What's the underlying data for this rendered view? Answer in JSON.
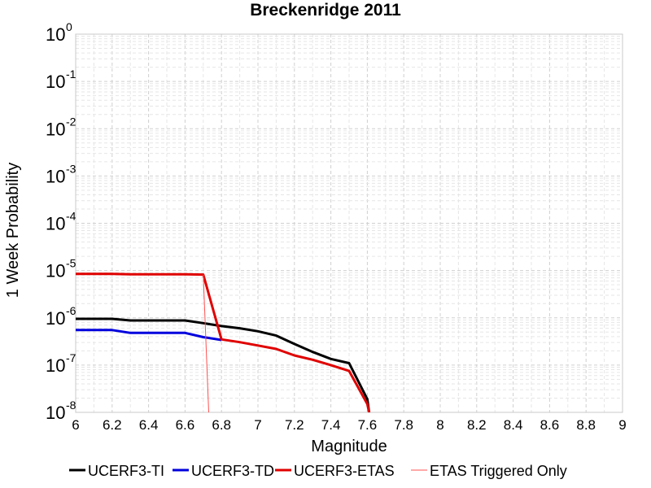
{
  "chart_data": {
    "type": "line",
    "title": "Breckenridge 2011",
    "xlabel": "Magnitude",
    "ylabel": "1 Week Probability",
    "xlim": [
      6,
      9
    ],
    "ylim": [
      1e-08,
      1
    ],
    "yscale": "log",
    "grid": true,
    "legend_position": "bottom",
    "x_ticks": [
      "6",
      "6.2",
      "6.4",
      "6.6",
      "6.8",
      "7",
      "7.2",
      "7.4",
      "7.6",
      "7.8",
      "8",
      "8.2",
      "8.4",
      "8.6",
      "8.8",
      "9"
    ],
    "y_ticks": [
      {
        "base": "10",
        "exp": "0",
        "value": 1
      },
      {
        "base": "10",
        "exp": "-1",
        "value": 0.1
      },
      {
        "base": "10",
        "exp": "-2",
        "value": 0.01
      },
      {
        "base": "10",
        "exp": "-3",
        "value": 0.001
      },
      {
        "base": "10",
        "exp": "-4",
        "value": 0.0001
      },
      {
        "base": "10",
        "exp": "-5",
        "value": 1e-05
      },
      {
        "base": "10",
        "exp": "-6",
        "value": 1e-06
      },
      {
        "base": "10",
        "exp": "-7",
        "value": 1e-07
      },
      {
        "base": "10",
        "exp": "-8",
        "value": 1e-08
      }
    ],
    "series": [
      {
        "name": "UCERF3-TI",
        "color": "#000000",
        "width": 3,
        "x": [
          6.0,
          6.2,
          6.3,
          6.5,
          6.6,
          6.7,
          6.8,
          6.9,
          7.0,
          7.1,
          7.2,
          7.3,
          7.4,
          7.5,
          7.6,
          7.61
        ],
        "y": [
          9.5e-07,
          9.5e-07,
          8.8e-07,
          8.8e-07,
          8.8e-07,
          7.7e-07,
          6.7e-07,
          6e-07,
          5.2e-07,
          4.2e-07,
          2.8e-07,
          1.9e-07,
          1.35e-07,
          1.1e-07,
          1.9e-08,
          1e-08
        ]
      },
      {
        "name": "UCERF3-TD",
        "color": "#0000dd",
        "width": 3,
        "x": [
          6.0,
          6.2,
          6.3,
          6.5,
          6.6,
          6.7,
          6.8
        ],
        "y": [
          5.5e-07,
          5.5e-07,
          4.8e-07,
          4.8e-07,
          4.8e-07,
          3.9e-07,
          3.4e-07
        ]
      },
      {
        "name": "UCERF3-ETAS",
        "color": "#e00000",
        "width": 3,
        "x": [
          6.0,
          6.2,
          6.3,
          6.5,
          6.6,
          6.7,
          6.8,
          6.9,
          7.0,
          7.1,
          7.2,
          7.3,
          7.4,
          7.5,
          7.6,
          7.61
        ],
        "y": [
          8.5e-06,
          8.5e-06,
          8.3e-06,
          8.3e-06,
          8.3e-06,
          8.2e-06,
          3.5e-07,
          3.05e-07,
          2.6e-07,
          2.2e-07,
          1.6e-07,
          1.3e-07,
          1e-07,
          7.5e-08,
          1.5e-08,
          1e-08
        ]
      },
      {
        "name": "ETAS Triggered Only",
        "color": "#ff5050",
        "width": 1,
        "x": [
          6.7,
          6.73
        ],
        "y": [
          8.2e-06,
          1e-08
        ]
      }
    ]
  }
}
